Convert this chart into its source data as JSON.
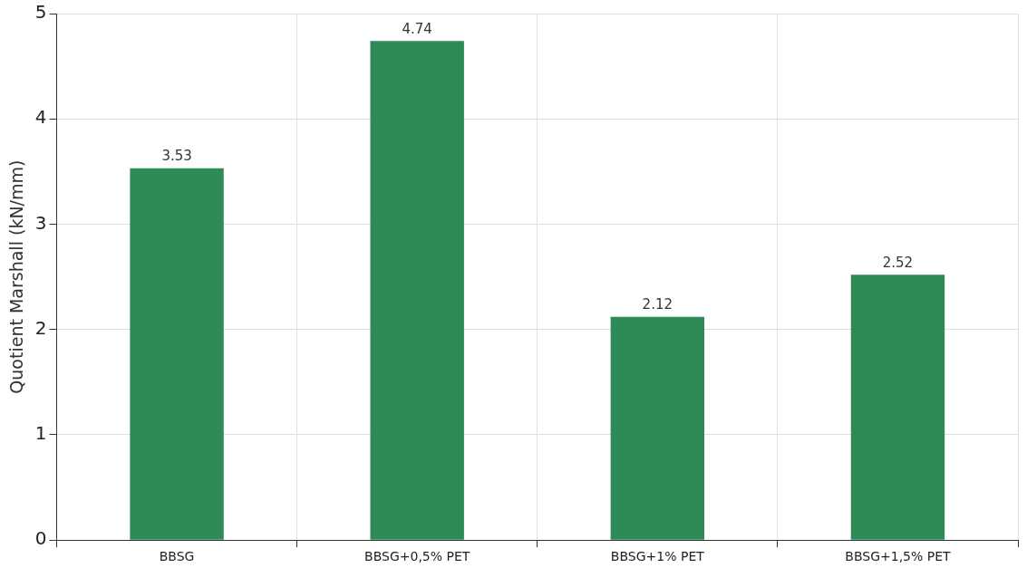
{
  "chart_data": {
    "type": "bar",
    "ylabel": "Quotient Marshall (kN/mm)",
    "categories": [
      "BBSG",
      "BBSG+0,5% PET",
      "BBSG+1% PET",
      "BBSG+1,5% PET"
    ],
    "values": [
      3.53,
      4.74,
      2.12,
      2.52
    ],
    "color": "#2e8b57",
    "ylim": [
      0,
      5
    ],
    "yticks": [
      0,
      1,
      2,
      3,
      4,
      5
    ],
    "grid": true,
    "data_labels": true,
    "legend": false
  }
}
